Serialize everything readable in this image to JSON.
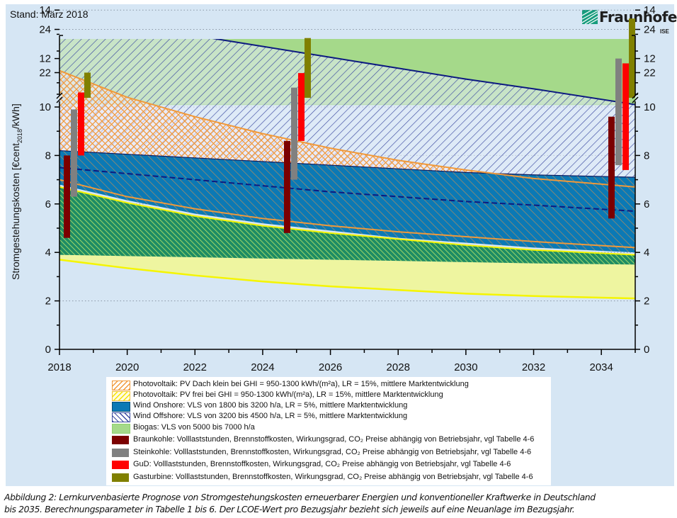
{
  "header": {
    "stand": "Stand: März 2018",
    "logo_text": "Fraunhofer",
    "logo_sub": "ISE"
  },
  "caption": {
    "line1": "Abbildung 2: Lernkurvenbasierte Prognose von Stromgestehungskosten erneuerbarer Energien und konventioneller Kraftwerke in Deutschland",
    "line2": "bis 2035. Berechnungsparameter in Tabelle 1 bis 6. Der LCOE-Wert pro Bezugsjahr bezieht sich jeweils auf eine Neuanlage im Bezugsjahr."
  },
  "colors": {
    "panel": "#d6e6f4",
    "biogas": "#a5d98a",
    "wind_onshore": "#0b79b5",
    "wind_offshore_line": "#1a237e",
    "pv_dach": "#f0993a",
    "pv_frei": "#f2f28a",
    "braunkohle": "#7b0000",
    "steinkohle": "#808080",
    "gud": "#ff0000",
    "gasturbine": "#808000"
  },
  "chart_data": {
    "type": "area",
    "title": "",
    "ylabel_main": "Stromgestehungskosten [€cent",
    "ylabel_sub": "2018",
    "ylabel_tail": "/kWh]",
    "xlabel": "",
    "xlim": [
      2018,
      2035
    ],
    "ylim": [
      0,
      25
    ],
    "y_axis_break": [
      15,
      21
    ],
    "x_ticks": [
      2018,
      2020,
      2022,
      2024,
      2026,
      2028,
      2030,
      2032,
      2034
    ],
    "y_ticks": [
      0,
      2,
      4,
      6,
      8,
      10,
      12,
      14,
      22,
      24
    ],
    "grid": "dotted horizontal",
    "bands": [
      {
        "name": "Biogas",
        "x": [
          2018,
          2035
        ],
        "lower": [
          10.1,
          10.1
        ],
        "upper": [
          14.8,
          14.8
        ]
      },
      {
        "name": "Wind Offshore",
        "x": [
          2018,
          2020,
          2022,
          2024,
          2026,
          2028,
          2030,
          2032,
          2035
        ],
        "lower": [
          8.2,
          8.05,
          7.9,
          7.75,
          7.6,
          7.45,
          7.3,
          7.2,
          7.1
        ],
        "upper": [
          13.7,
          13.35,
          12.95,
          12.5,
          12.05,
          11.6,
          11.15,
          10.75,
          10.1
        ]
      },
      {
        "name": "PV Dach klein",
        "x": [
          2018,
          2020,
          2022,
          2024,
          2026,
          2028,
          2030,
          2032,
          2035
        ],
        "lower": [
          7.0,
          6.3,
          5.8,
          5.4,
          5.1,
          4.85,
          4.65,
          4.45,
          4.2
        ],
        "upper": [
          11.5,
          10.4,
          9.6,
          8.9,
          8.3,
          7.8,
          7.4,
          7.05,
          6.7
        ]
      },
      {
        "name": "Wind Onshore",
        "x": [
          2018,
          2020,
          2022,
          2024,
          2026,
          2028,
          2030,
          2032,
          2035
        ],
        "lower": [
          6.8,
          6.15,
          5.6,
          5.2,
          4.9,
          4.6,
          4.4,
          4.2,
          4.0
        ],
        "upper": [
          8.2,
          8.05,
          7.9,
          7.75,
          7.6,
          7.45,
          7.3,
          7.2,
          7.1
        ],
        "mid_dashed": [
          7.5,
          7.25,
          7.0,
          6.75,
          6.5,
          6.3,
          6.1,
          5.95,
          5.7
        ]
      },
      {
        "name": "PV frei",
        "x": [
          2018,
          2020,
          2022,
          2024,
          2026,
          2028,
          2030,
          2032,
          2035
        ],
        "lower": [
          3.7,
          3.35,
          3.05,
          2.8,
          2.6,
          2.45,
          2.3,
          2.2,
          2.1
        ],
        "upper": [
          6.7,
          6.05,
          5.5,
          5.1,
          4.8,
          4.55,
          4.3,
          4.1,
          3.9
        ]
      }
    ],
    "bars": [
      {
        "name": "Braunkohle",
        "year": 2018,
        "low": 4.6,
        "high": 8.0
      },
      {
        "name": "Steinkohle",
        "year": 2018,
        "low": 6.3,
        "high": 9.9
      },
      {
        "name": "GuD",
        "year": 2018,
        "low": 8.0,
        "high": 10.6
      },
      {
        "name": "Gasturbine",
        "year": 2018,
        "low": 11.0,
        "high": 22.0
      },
      {
        "name": "Braunkohle",
        "year": 2025,
        "low": 4.8,
        "high": 8.6
      },
      {
        "name": "Steinkohle",
        "year": 2025,
        "low": 7.0,
        "high": 10.8
      },
      {
        "name": "GuD",
        "year": 2025,
        "low": 8.6,
        "high": 11.4
      },
      {
        "name": "Gasturbine",
        "year": 2025,
        "low": 12.1,
        "high": 23.6
      },
      {
        "name": "Braunkohle",
        "year": 2035,
        "low": 5.4,
        "high": 9.6
      },
      {
        "name": "Steinkohle",
        "year": 2035,
        "low": 7.6,
        "high": 12.0
      },
      {
        "name": "GuD",
        "year": 2035,
        "low": 7.4,
        "high": 11.8
      },
      {
        "name": "Gasturbine",
        "year": 2035,
        "low": 13.0,
        "high": 24.5
      }
    ],
    "legend": [
      {
        "key": "pv_dach",
        "label": "Photovoltaik: PV Dach klein bei GHI = 950-1300 kWh/(m²a), LR = 15%, mittlere Marktentwicklung"
      },
      {
        "key": "pv_frei",
        "label": "Photovoltaik: PV frei bei GHI = 950-1300 kWh/(m²a), LR = 15%, mittlere Marktentwicklung"
      },
      {
        "key": "wind_onshore",
        "label": "Wind Onshore: VLS von 1800 bis 3200 h/a, LR = 5%, mittlere Marktentwicklung"
      },
      {
        "key": "wind_offshore",
        "label": "Wind Offshore: VLS von 3200 bis 4500 h/a, LR = 5%, mittlere Marktentwicklung"
      },
      {
        "key": "biogas",
        "label": "Biogas: VLS von 5000 bis 7000 h/a"
      },
      {
        "key": "braunkohle",
        "label": "Braunkohle: Volllaststunden, Brennstoffkosten, Wirkungsgrad, CO₂ Preise abhängig von Betriebsjahr, vgl Tabelle 4-6"
      },
      {
        "key": "steinkohle",
        "label": "Steinkohle: Volllaststunden, Brennstoffkosten, Wirkungsgrad, CO₂ Preise abhängig von Betriebsjahr, vgl Tabelle 4-6"
      },
      {
        "key": "gud",
        "label": "GuD: Volllaststunden, Brennstoffkosten, Wirkungsgrad, CO₂ Preise abhängig von Betriebsjahr, vgl Tabelle 4-6"
      },
      {
        "key": "gasturbine",
        "label": "Gasturbine: Volllaststunden, Brennstoffkosten, Wirkungsgrad, CO₂ Preise abhängig von Betriebsjahr, vgl Tabelle 4-6"
      }
    ],
    "legend_placement": "bottom"
  }
}
